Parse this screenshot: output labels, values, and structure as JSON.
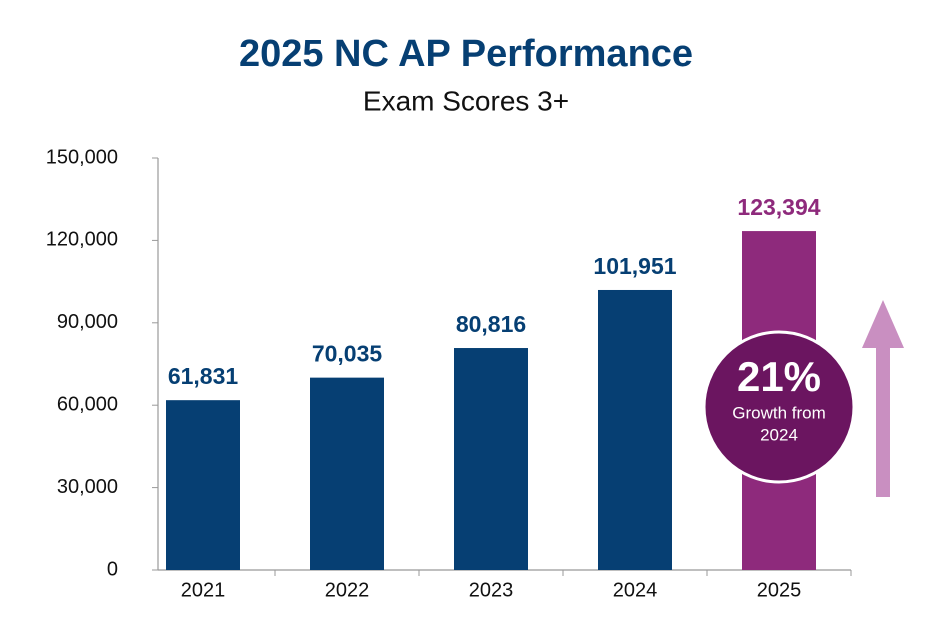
{
  "chart_data": {
    "type": "bar",
    "title": "2025 NC AP Performance",
    "subtitle": "Exam Scores 3+",
    "categories": [
      "2021",
      "2022",
      "2023",
      "2024",
      "2025"
    ],
    "values": [
      61831,
      70035,
      80816,
      101951,
      123394
    ],
    "value_labels": [
      "61,831",
      "70,035",
      "80,816",
      "101,951",
      "123,394"
    ],
    "colors": [
      "#063f73",
      "#063f73",
      "#063f73",
      "#063f73",
      "#8e2a7c"
    ],
    "ylim": [
      0,
      150000
    ],
    "yticks": [
      0,
      {
        "value": 30000,
        "label": "30,000"
      },
      {
        "value": 60000,
        "label": "60,000"
      },
      {
        "value": 90000,
        "label": "90,000"
      },
      {
        "value": 120000,
        "label": "120,000"
      },
      {
        "value": 150000,
        "label": "150,000"
      }
    ],
    "annotation": {
      "headline": "21%",
      "lines": [
        "Growth from",
        "2024"
      ],
      "color": "#6b1560",
      "arrow_color": "#c98fc1"
    }
  }
}
